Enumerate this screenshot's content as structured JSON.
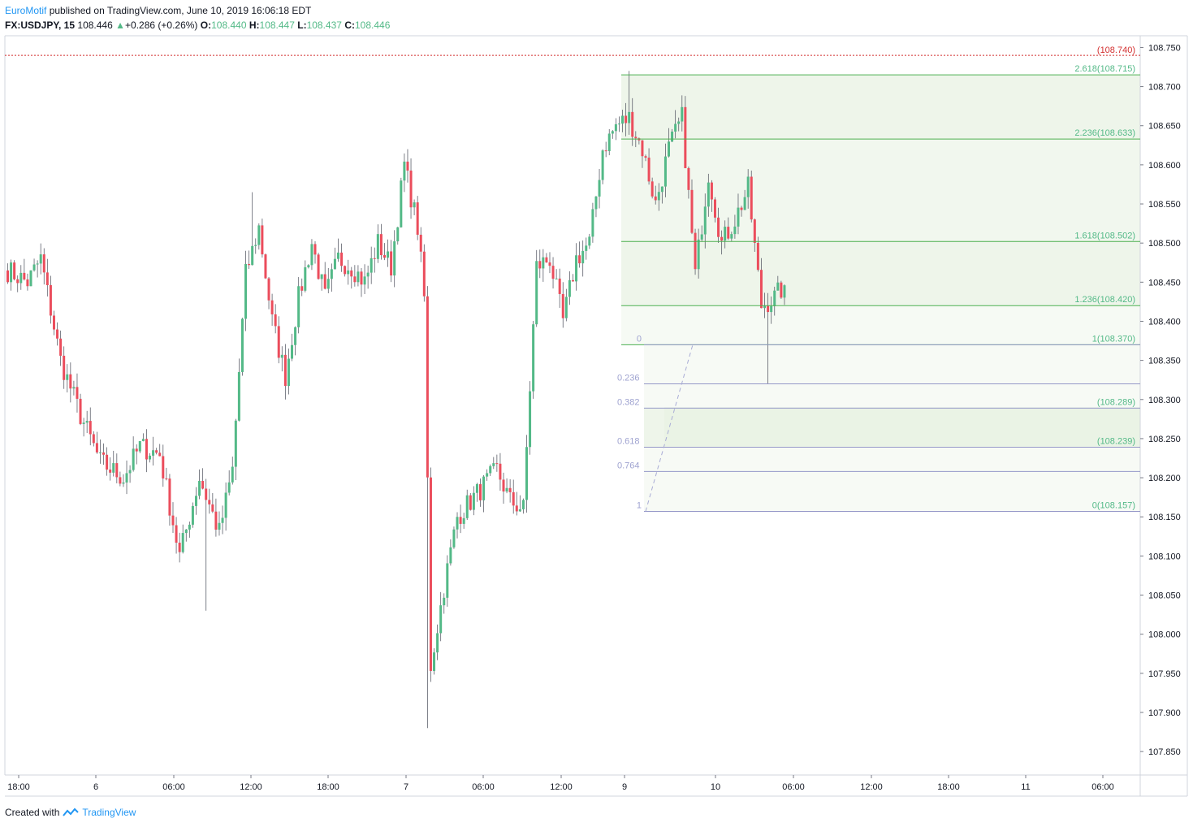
{
  "header": {
    "author": "EuroMotif",
    "published_text": "published on TradingView.com, June 10, 2019 16:06:18 EDT",
    "symbol": "FX:USDJPY, 15",
    "last": "108.446",
    "change_arrow": "▲",
    "change": "+0.286 (+0.26%)",
    "o_label": "O:",
    "o": "108.440",
    "h_label": "H:",
    "h": "108.447",
    "l_label": "L:",
    "l": "108.437",
    "c_label": "C:",
    "c": "108.446"
  },
  "footer": {
    "created_with": "Created with",
    "brand": "TradingView",
    "logo_icon": "tradingview-logo-icon"
  },
  "colors": {
    "up": "#53b987",
    "down": "#eb4d5c",
    "fib_ext": "#4caf50",
    "fib_ext_label": "#53b987",
    "fib_ret": "#9598c8",
    "alert_line": "#d32f2f",
    "axis_text": "#131722"
  },
  "chart_data": {
    "type": "candlestick",
    "ylim": [
      107.82,
      108.765
    ],
    "y_ticks": [
      "108.750",
      "108.700",
      "108.650",
      "108.600",
      "108.550",
      "108.500",
      "108.450",
      "108.400",
      "108.350",
      "108.300",
      "108.250",
      "108.200",
      "108.150",
      "108.100",
      "108.050",
      "108.000",
      "107.950",
      "107.900",
      "107.850"
    ],
    "x_ticks": [
      "18:00",
      "6",
      "06:00",
      "12:00",
      "18:00",
      "7",
      "06:00",
      "12:00",
      "9",
      "10",
      "06:00",
      "12:00",
      "18:00",
      "11",
      "06:00"
    ],
    "alert_price_label": "(108.740)",
    "alert_price": 108.74,
    "fib_extension_levels": [
      {
        "label": "2.618(108.715)",
        "price": 108.715
      },
      {
        "label": "2.236(108.633)",
        "price": 108.633
      },
      {
        "label": "1.618(108.502)",
        "price": 108.502
      },
      {
        "label": "1.236(108.420)",
        "price": 108.42
      },
      {
        "label": "1(108.370)",
        "price": 108.37
      }
    ],
    "fib_retracement_levels": [
      {
        "ratio": "0",
        "price": 108.37,
        "label": ""
      },
      {
        "ratio": "0.236",
        "price": 108.32,
        "label": ""
      },
      {
        "ratio": "0.382",
        "price": 108.289,
        "label": "(108.289)"
      },
      {
        "ratio": "0.618",
        "price": 108.239,
        "label": "(108.239)"
      },
      {
        "ratio": "0.764",
        "price": 108.208,
        "label": ""
      },
      {
        "ratio": "1",
        "price": 108.157,
        "label": "0(108.157)"
      }
    ],
    "anchor_points": [
      {
        "bar": 6,
        "price": 108.45
      },
      {
        "bar": 10,
        "price": 108.48
      },
      {
        "bar": 16,
        "price": 108.35
      },
      {
        "bar": 22,
        "price": 108.28
      },
      {
        "bar": 28,
        "price": 108.22
      },
      {
        "bar": 35,
        "price": 108.2
      },
      {
        "bar": 40,
        "price": 108.24
      },
      {
        "bar": 46,
        "price": 108.23
      },
      {
        "bar": 52,
        "price": 108.1
      },
      {
        "bar": 58,
        "price": 108.2
      },
      {
        "bar": 64,
        "price": 108.13
      },
      {
        "bar": 68,
        "price": 108.21
      },
      {
        "bar": 72,
        "price": 108.46
      },
      {
        "bar": 76,
        "price": 108.52
      },
      {
        "bar": 80,
        "price": 108.4
      },
      {
        "bar": 84,
        "price": 108.33
      },
      {
        "bar": 88,
        "price": 108.43
      },
      {
        "bar": 92,
        "price": 108.5
      },
      {
        "bar": 96,
        "price": 108.43
      },
      {
        "bar": 100,
        "price": 108.48
      },
      {
        "bar": 104,
        "price": 108.47
      },
      {
        "bar": 108,
        "price": 108.45
      },
      {
        "bar": 112,
        "price": 108.5
      },
      {
        "bar": 116,
        "price": 108.47
      },
      {
        "bar": 120,
        "price": 108.6
      },
      {
        "bar": 124,
        "price": 108.52
      },
      {
        "bar": 126,
        "price": 108.43
      },
      {
        "bar": 128,
        "price": 107.96
      },
      {
        "bar": 132,
        "price": 108.06
      },
      {
        "bar": 136,
        "price": 108.15
      },
      {
        "bar": 140,
        "price": 108.17
      },
      {
        "bar": 144,
        "price": 108.19
      },
      {
        "bar": 148,
        "price": 108.21
      },
      {
        "bar": 152,
        "price": 108.17
      },
      {
        "bar": 156,
        "price": 108.16
      },
      {
        "bar": 160,
        "price": 108.47
      },
      {
        "bar": 164,
        "price": 108.48
      },
      {
        "bar": 168,
        "price": 108.4
      },
      {
        "bar": 172,
        "price": 108.48
      },
      {
        "bar": 176,
        "price": 108.5
      },
      {
        "bar": 180,
        "price": 108.62
      },
      {
        "bar": 184,
        "price": 108.65
      },
      {
        "bar": 188,
        "price": 108.66
      },
      {
        "bar": 192,
        "price": 108.62
      },
      {
        "bar": 196,
        "price": 108.55
      },
      {
        "bar": 200,
        "price": 108.62
      },
      {
        "bar": 204,
        "price": 108.66
      },
      {
        "bar": 208,
        "price": 108.46
      },
      {
        "bar": 212,
        "price": 108.59
      },
      {
        "bar": 216,
        "price": 108.5
      },
      {
        "bar": 220,
        "price": 108.53
      },
      {
        "bar": 224,
        "price": 108.57
      },
      {
        "bar": 228,
        "price": 108.42
      },
      {
        "bar": 232,
        "price": 108.43
      },
      {
        "bar": 235,
        "price": 108.446
      }
    ]
  }
}
